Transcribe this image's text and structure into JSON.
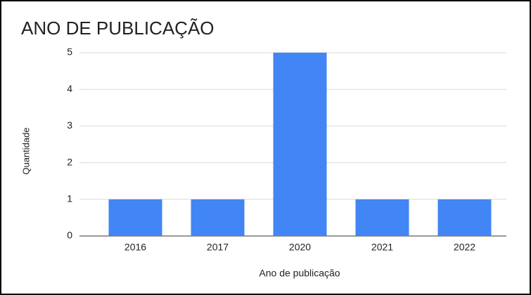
{
  "chart_data": {
    "type": "bar",
    "title": "ANO DE PUBLICAÇÃO",
    "x_label": "Ano de publicação",
    "y_label": "Quantidade",
    "categories": [
      "2016",
      "2017",
      "2020",
      "2021",
      "2022"
    ],
    "values": [
      1,
      1,
      5,
      1,
      1
    ],
    "color": "#4285f4",
    "ylim": [
      0,
      5
    ],
    "yticks": [
      0,
      1,
      2,
      3,
      4,
      5
    ],
    "grid": true
  }
}
